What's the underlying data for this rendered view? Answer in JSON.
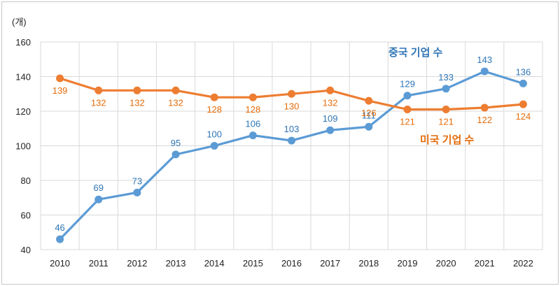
{
  "chart_data": {
    "type": "line",
    "unit_label": "(개)",
    "x": [
      "2010",
      "2011",
      "2012",
      "2013",
      "2014",
      "2015",
      "2016",
      "2017",
      "2018",
      "2019",
      "2020",
      "2021",
      "2022"
    ],
    "ylim": [
      40,
      160
    ],
    "yticks": [
      40,
      60,
      80,
      100,
      120,
      140,
      160
    ],
    "grid": true,
    "series": [
      {
        "name": "중국 기업 수",
        "color": "#5b9bd5",
        "label_color": "#2e75b6",
        "values": [
          46,
          69,
          73,
          95,
          100,
          106,
          103,
          109,
          111,
          129,
          133,
          143,
          136
        ]
      },
      {
        "name": "미국 기업 수",
        "color": "#ed7d31",
        "label_color": "#e46c0a",
        "values": [
          139,
          132,
          132,
          132,
          128,
          128,
          130,
          132,
          126,
          121,
          121,
          122,
          124
        ]
      }
    ]
  }
}
